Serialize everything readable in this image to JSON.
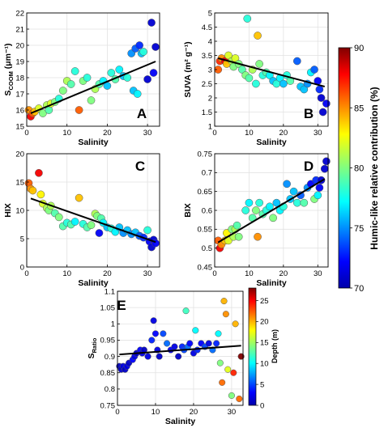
{
  "chart_data": [
    {
      "panel": "A",
      "type": "scatter",
      "xlabel": "Salinity",
      "ylabel": "S_COOM (μm⁻¹)",
      "ylabel_main": "S",
      "ylabel_sub": "COOM",
      "ylabel_unit": "(μm⁻¹)",
      "xlim": [
        0,
        33
      ],
      "ylim": [
        15,
        22
      ],
      "xticks": [
        0,
        10,
        20,
        30
      ],
      "yticks": [
        15,
        16,
        17,
        18,
        19,
        20,
        21,
        22
      ],
      "grid": true,
      "color_by": "Humic-like relative contribution (%)",
      "points": [
        {
          "x": 0.5,
          "y": 16.0,
          "c": 85
        },
        {
          "x": 1,
          "y": 15.6,
          "c": 88
        },
        {
          "x": 1.5,
          "y": 15.8,
          "c": 86
        },
        {
          "x": 2,
          "y": 15.9,
          "c": 84
        },
        {
          "x": 3,
          "y": 16.1,
          "c": 82
        },
        {
          "x": 4,
          "y": 15.8,
          "c": 80
        },
        {
          "x": 5,
          "y": 16.3,
          "c": 81
        },
        {
          "x": 5.5,
          "y": 16.0,
          "c": 79
        },
        {
          "x": 6,
          "y": 16.4,
          "c": 82
        },
        {
          "x": 7,
          "y": 16.5,
          "c": 80
        },
        {
          "x": 8,
          "y": 16.7,
          "c": 78
        },
        {
          "x": 9,
          "y": 17.2,
          "c": 80
        },
        {
          "x": 10,
          "y": 17.8,
          "c": 81
        },
        {
          "x": 11,
          "y": 17.6,
          "c": 79
        },
        {
          "x": 12,
          "y": 18.4,
          "c": 78
        },
        {
          "x": 13,
          "y": 16.0,
          "c": 86
        },
        {
          "x": 14,
          "y": 17.8,
          "c": 80
        },
        {
          "x": 15,
          "y": 18.0,
          "c": 78
        },
        {
          "x": 16,
          "y": 16.6,
          "c": 80
        },
        {
          "x": 17,
          "y": 17.3,
          "c": 81
        },
        {
          "x": 18,
          "y": 17.6,
          "c": 79
        },
        {
          "x": 19,
          "y": 17.8,
          "c": 77
        },
        {
          "x": 20,
          "y": 17.5,
          "c": 76
        },
        {
          "x": 21,
          "y": 18.3,
          "c": 78
        },
        {
          "x": 22,
          "y": 17.9,
          "c": 79
        },
        {
          "x": 23,
          "y": 18.5,
          "c": 77
        },
        {
          "x": 24,
          "y": 18.1,
          "c": 76
        },
        {
          "x": 25,
          "y": 18.0,
          "c": 78
        },
        {
          "x": 26,
          "y": 19.5,
          "c": 75
        },
        {
          "x": 26.5,
          "y": 17.2,
          "c": 76
        },
        {
          "x": 27,
          "y": 19.8,
          "c": 74
        },
        {
          "x": 27.5,
          "y": 17.0,
          "c": 77
        },
        {
          "x": 28,
          "y": 20.0,
          "c": 73
        },
        {
          "x": 28.5,
          "y": 19.5,
          "c": 76
        },
        {
          "x": 29,
          "y": 19.6,
          "c": 78
        },
        {
          "x": 30,
          "y": 17.9,
          "c": 71
        },
        {
          "x": 31,
          "y": 21.4,
          "c": 71
        },
        {
          "x": 31.5,
          "y": 18.3,
          "c": 72
        },
        {
          "x": 32,
          "y": 19.9,
          "c": 71
        }
      ],
      "fit": [
        [
          1,
          15.8
        ],
        [
          32,
          19.0
        ]
      ]
    },
    {
      "panel": "B",
      "type": "scatter",
      "xlabel": "Salinity",
      "ylabel": "SUVA (m² g⁻¹)",
      "ylabel_main": "SUVA",
      "ylabel_unit": "(m² g⁻¹)",
      "xlim": [
        0,
        33
      ],
      "ylim": [
        1,
        5
      ],
      "xticks": [
        0,
        10,
        20,
        30
      ],
      "yticks": [
        1,
        1.5,
        2,
        2.5,
        3,
        3.5,
        4,
        4.5,
        5
      ],
      "grid": true,
      "color_by": "Humic-like relative contribution (%)",
      "points": [
        {
          "x": 1,
          "y": 3.0,
          "c": 86
        },
        {
          "x": 1.5,
          "y": 3.3,
          "c": 87
        },
        {
          "x": 2,
          "y": 3.4,
          "c": 85
        },
        {
          "x": 3,
          "y": 3.3,
          "c": 88
        },
        {
          "x": 3.5,
          "y": 3.2,
          "c": 84
        },
        {
          "x": 4,
          "y": 3.5,
          "c": 82
        },
        {
          "x": 5,
          "y": 3.3,
          "c": 81
        },
        {
          "x": 5.5,
          "y": 3.1,
          "c": 80
        },
        {
          "x": 6,
          "y": 3.4,
          "c": 82
        },
        {
          "x": 7,
          "y": 3.2,
          "c": 80
        },
        {
          "x": 8,
          "y": 3.0,
          "c": 79
        },
        {
          "x": 9,
          "y": 2.8,
          "c": 80
        },
        {
          "x": 9.5,
          "y": 4.8,
          "c": 78
        },
        {
          "x": 10,
          "y": 2.7,
          "c": 79
        },
        {
          "x": 11,
          "y": 3.0,
          "c": 81
        },
        {
          "x": 12,
          "y": 2.5,
          "c": 78
        },
        {
          "x": 12.5,
          "y": 4.2,
          "c": 84
        },
        {
          "x": 13,
          "y": 3.2,
          "c": 80
        },
        {
          "x": 14,
          "y": 2.8,
          "c": 78
        },
        {
          "x": 15,
          "y": 2.9,
          "c": 79
        },
        {
          "x": 16,
          "y": 2.8,
          "c": 77
        },
        {
          "x": 17,
          "y": 2.6,
          "c": 76
        },
        {
          "x": 18,
          "y": 2.5,
          "c": 78
        },
        {
          "x": 19,
          "y": 2.7,
          "c": 77
        },
        {
          "x": 20,
          "y": 2.5,
          "c": 76
        },
        {
          "x": 21,
          "y": 2.8,
          "c": 78
        },
        {
          "x": 22,
          "y": 2.6,
          "c": 79
        },
        {
          "x": 24,
          "y": 3.3,
          "c": 74
        },
        {
          "x": 25,
          "y": 2.4,
          "c": 76
        },
        {
          "x": 26,
          "y": 2.3,
          "c": 76
        },
        {
          "x": 27,
          "y": 2.5,
          "c": 75
        },
        {
          "x": 28,
          "y": 2.9,
          "c": 77
        },
        {
          "x": 29,
          "y": 3.0,
          "c": 74
        },
        {
          "x": 30,
          "y": 2.6,
          "c": 72
        },
        {
          "x": 30.5,
          "y": 2.3,
          "c": 73
        },
        {
          "x": 31,
          "y": 2.0,
          "c": 71
        },
        {
          "x": 31.5,
          "y": 1.5,
          "c": 71
        },
        {
          "x": 32.5,
          "y": 1.8,
          "c": 72
        }
      ],
      "fit": [
        [
          1,
          3.4
        ],
        [
          32,
          2.4
        ]
      ]
    },
    {
      "panel": "C",
      "type": "scatter",
      "xlabel": "Salinity",
      "ylabel": "HIX",
      "xlim": [
        0,
        33
      ],
      "ylim": [
        0,
        20
      ],
      "xticks": [
        0,
        10,
        20,
        30
      ],
      "yticks": [
        0,
        5,
        10,
        15,
        20
      ],
      "grid": true,
      "color_by": "Humic-like relative contribution (%)",
      "points": [
        {
          "x": 0.5,
          "y": 14.8,
          "c": 86
        },
        {
          "x": 1,
          "y": 13.8,
          "c": 85
        },
        {
          "x": 1.5,
          "y": 13.5,
          "c": 84
        },
        {
          "x": 3,
          "y": 16.6,
          "c": 88
        },
        {
          "x": 3.5,
          "y": 12.8,
          "c": 83
        },
        {
          "x": 4,
          "y": 11.2,
          "c": 82
        },
        {
          "x": 5,
          "y": 10.4,
          "c": 81
        },
        {
          "x": 5.5,
          "y": 10.0,
          "c": 80
        },
        {
          "x": 6,
          "y": 10.8,
          "c": 81
        },
        {
          "x": 7,
          "y": 9.5,
          "c": 79
        },
        {
          "x": 8,
          "y": 8.8,
          "c": 80
        },
        {
          "x": 9,
          "y": 7.2,
          "c": 79
        },
        {
          "x": 10,
          "y": 7.8,
          "c": 78
        },
        {
          "x": 11,
          "y": 7.5,
          "c": 79
        },
        {
          "x": 12,
          "y": 8.0,
          "c": 77
        },
        {
          "x": 13,
          "y": 12.2,
          "c": 84
        },
        {
          "x": 14,
          "y": 7.6,
          "c": 78
        },
        {
          "x": 15,
          "y": 7.0,
          "c": 79
        },
        {
          "x": 16,
          "y": 7.4,
          "c": 80
        },
        {
          "x": 17,
          "y": 9.4,
          "c": 81
        },
        {
          "x": 17.5,
          "y": 9.0,
          "c": 80
        },
        {
          "x": 18,
          "y": 6.0,
          "c": 72
        },
        {
          "x": 18.5,
          "y": 8.6,
          "c": 79
        },
        {
          "x": 19,
          "y": 7.8,
          "c": 77
        },
        {
          "x": 20,
          "y": 7.0,
          "c": 76
        },
        {
          "x": 21,
          "y": 6.8,
          "c": 78
        },
        {
          "x": 22,
          "y": 6.2,
          "c": 77
        },
        {
          "x": 23,
          "y": 7.0,
          "c": 76
        },
        {
          "x": 24,
          "y": 6.0,
          "c": 75
        },
        {
          "x": 25,
          "y": 6.5,
          "c": 76
        },
        {
          "x": 26,
          "y": 5.8,
          "c": 75
        },
        {
          "x": 27,
          "y": 6.1,
          "c": 76
        },
        {
          "x": 28,
          "y": 5.5,
          "c": 74
        },
        {
          "x": 29,
          "y": 5.2,
          "c": 73
        },
        {
          "x": 30,
          "y": 6.5,
          "c": 78
        },
        {
          "x": 30.5,
          "y": 4.5,
          "c": 72
        },
        {
          "x": 31,
          "y": 3.5,
          "c": 71
        },
        {
          "x": 31.5,
          "y": 4.8,
          "c": 71
        },
        {
          "x": 32,
          "y": 4.2,
          "c": 72
        }
      ],
      "fit": [
        [
          1,
          12.1
        ],
        [
          32,
          4.4
        ]
      ]
    },
    {
      "panel": "D",
      "type": "scatter",
      "xlabel": "Salinity",
      "ylabel": "BIX",
      "xlim": [
        0,
        33
      ],
      "ylim": [
        0.45,
        0.75
      ],
      "xticks": [
        0,
        10,
        20,
        30
      ],
      "yticks": [
        0.45,
        0.5,
        0.55,
        0.6,
        0.65,
        0.7,
        0.75
      ],
      "grid": true,
      "color_by": "Humic-like relative contribution (%)",
      "points": [
        {
          "x": 1,
          "y": 0.52,
          "c": 86
        },
        {
          "x": 1.5,
          "y": 0.5,
          "c": 88
        },
        {
          "x": 2,
          "y": 0.51,
          "c": 85
        },
        {
          "x": 3,
          "y": 0.52,
          "c": 84
        },
        {
          "x": 3.5,
          "y": 0.54,
          "c": 83
        },
        {
          "x": 4,
          "y": 0.52,
          "c": 82
        },
        {
          "x": 5,
          "y": 0.55,
          "c": 80
        },
        {
          "x": 5.5,
          "y": 0.53,
          "c": 81
        },
        {
          "x": 6,
          "y": 0.55,
          "c": 81
        },
        {
          "x": 6.5,
          "y": 0.56,
          "c": 79
        },
        {
          "x": 7,
          "y": 0.53,
          "c": 80
        },
        {
          "x": 9,
          "y": 0.6,
          "c": 78
        },
        {
          "x": 10,
          "y": 0.62,
          "c": 77
        },
        {
          "x": 11,
          "y": 0.58,
          "c": 79
        },
        {
          "x": 12,
          "y": 0.6,
          "c": 80
        },
        {
          "x": 12.5,
          "y": 0.53,
          "c": 85
        },
        {
          "x": 13,
          "y": 0.62,
          "c": 78
        },
        {
          "x": 14,
          "y": 0.59,
          "c": 79
        },
        {
          "x": 15,
          "y": 0.6,
          "c": 78
        },
        {
          "x": 16,
          "y": 0.61,
          "c": 77
        },
        {
          "x": 17,
          "y": 0.58,
          "c": 80
        },
        {
          "x": 18,
          "y": 0.62,
          "c": 76
        },
        {
          "x": 19,
          "y": 0.6,
          "c": 77
        },
        {
          "x": 20,
          "y": 0.61,
          "c": 78
        },
        {
          "x": 21,
          "y": 0.67,
          "c": 75
        },
        {
          "x": 22,
          "y": 0.63,
          "c": 76
        },
        {
          "x": 23,
          "y": 0.65,
          "c": 76
        },
        {
          "x": 24,
          "y": 0.62,
          "c": 78
        },
        {
          "x": 25,
          "y": 0.64,
          "c": 74
        },
        {
          "x": 26,
          "y": 0.62,
          "c": 79
        },
        {
          "x": 27,
          "y": 0.66,
          "c": 75
        },
        {
          "x": 28,
          "y": 0.67,
          "c": 72
        },
        {
          "x": 29,
          "y": 0.63,
          "c": 80
        },
        {
          "x": 29.5,
          "y": 0.68,
          "c": 73
        },
        {
          "x": 30,
          "y": 0.64,
          "c": 77
        },
        {
          "x": 30.5,
          "y": 0.66,
          "c": 72
        },
        {
          "x": 31,
          "y": 0.68,
          "c": 71
        },
        {
          "x": 32,
          "y": 0.71,
          "c": 71
        },
        {
          "x": 32.5,
          "y": 0.73,
          "c": 71
        }
      ],
      "fit": [
        [
          1,
          0.515
        ],
        [
          32,
          0.683
        ]
      ]
    },
    {
      "panel": "E",
      "type": "scatter",
      "xlabel": "Salinity",
      "ylabel": "S_Ratio",
      "ylabel_main": "S",
      "ylabel_sub": "Ratio",
      "xlim": [
        0,
        33
      ],
      "ylim": [
        0.75,
        1.1
      ],
      "xticks": [
        0,
        10,
        20,
        30
      ],
      "yticks": [
        0.75,
        0.8,
        0.85,
        0.9,
        0.95,
        1,
        1.05,
        1.1
      ],
      "grid": true,
      "color_by": "Depth (m)",
      "points": [
        {
          "x": 0.5,
          "y": 0.87,
          "c": 1
        },
        {
          "x": 1,
          "y": 0.86,
          "c": 1
        },
        {
          "x": 1.5,
          "y": 0.87,
          "c": 2
        },
        {
          "x": 2,
          "y": 0.86,
          "c": 1
        },
        {
          "x": 2.5,
          "y": 0.87,
          "c": 2
        },
        {
          "x": 3,
          "y": 0.88,
          "c": 1
        },
        {
          "x": 4,
          "y": 0.89,
          "c": 3
        },
        {
          "x": 4.5,
          "y": 0.9,
          "c": 2
        },
        {
          "x": 5,
          "y": 0.91,
          "c": 1
        },
        {
          "x": 6,
          "y": 0.92,
          "c": 3
        },
        {
          "x": 6.5,
          "y": 0.91,
          "c": 2
        },
        {
          "x": 7,
          "y": 0.92,
          "c": 1
        },
        {
          "x": 8,
          "y": 0.9,
          "c": 2
        },
        {
          "x": 9,
          "y": 0.95,
          "c": 4
        },
        {
          "x": 9.5,
          "y": 1.01,
          "c": 2
        },
        {
          "x": 10,
          "y": 0.97,
          "c": 3
        },
        {
          "x": 10.5,
          "y": 0.92,
          "c": 2
        },
        {
          "x": 11,
          "y": 0.9,
          "c": 1
        },
        {
          "x": 12,
          "y": 0.97,
          "c": 5
        },
        {
          "x": 13,
          "y": 0.94,
          "c": 6
        },
        {
          "x": 14,
          "y": 0.92,
          "c": 3
        },
        {
          "x": 15,
          "y": 0.93,
          "c": 2
        },
        {
          "x": 16,
          "y": 0.9,
          "c": 1
        },
        {
          "x": 17,
          "y": 0.93,
          "c": 4
        },
        {
          "x": 17.5,
          "y": 0.92,
          "c": 5
        },
        {
          "x": 18,
          "y": 1.04,
          "c": 12
        },
        {
          "x": 18.5,
          "y": 0.93,
          "c": 6
        },
        {
          "x": 19,
          "y": 0.94,
          "c": 3
        },
        {
          "x": 20,
          "y": 0.91,
          "c": 2
        },
        {
          "x": 20.5,
          "y": 0.98,
          "c": 10
        },
        {
          "x": 21,
          "y": 0.92,
          "c": 4
        },
        {
          "x": 22,
          "y": 0.94,
          "c": 3
        },
        {
          "x": 23,
          "y": 0.93,
          "c": 5
        },
        {
          "x": 24,
          "y": 0.94,
          "c": 2
        },
        {
          "x": 25,
          "y": 0.92,
          "c": 6
        },
        {
          "x": 26,
          "y": 0.94,
          "c": 4
        },
        {
          "x": 26.5,
          "y": 0.97,
          "c": 10
        },
        {
          "x": 27,
          "y": 0.88,
          "c": 14
        },
        {
          "x": 27.5,
          "y": 0.82,
          "c": 22
        },
        {
          "x": 28,
          "y": 1.07,
          "c": 20
        },
        {
          "x": 28.5,
          "y": 1.03,
          "c": 21
        },
        {
          "x": 29,
          "y": 0.86,
          "c": 17
        },
        {
          "x": 30,
          "y": 0.78,
          "c": 14
        },
        {
          "x": 30.5,
          "y": 0.85,
          "c": 24
        },
        {
          "x": 31,
          "y": 1.0,
          "c": 20
        },
        {
          "x": 32,
          "y": 0.77,
          "c": 22
        },
        {
          "x": 32.5,
          "y": 0.9,
          "c": 28
        }
      ],
      "fit": [
        [
          0.5,
          0.906
        ],
        [
          32.5,
          0.933
        ]
      ]
    }
  ],
  "colorbars": {
    "humic": {
      "label": "Humic-like relative contribution (%)",
      "min": 70,
      "max": 90,
      "ticks": [
        "70",
        "75",
        "80",
        "85",
        "90"
      ]
    },
    "depth": {
      "label": "Depth (m)",
      "min": 0,
      "max": 28,
      "ticks": [
        "0",
        "5",
        "10",
        "15",
        "20",
        "25"
      ]
    }
  }
}
